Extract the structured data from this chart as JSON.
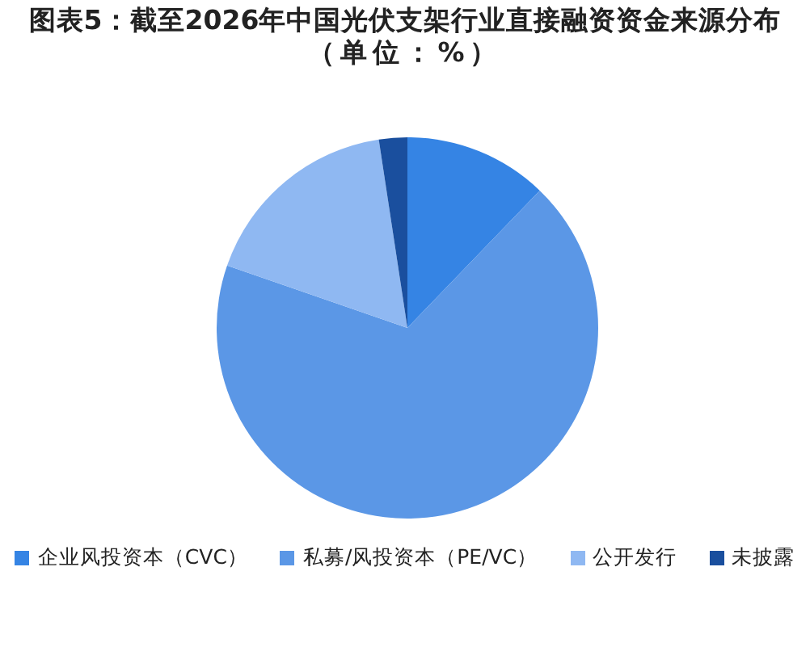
{
  "chart_data": {
    "type": "pie",
    "title": "图表5：截至2026年中国光伏支架行业直接融资资金来源分布",
    "subtitle": "（单位：%）",
    "categories": [
      "企业风投资本（CVC）",
      "私募/风投资本（PE/VC）",
      "公开发行",
      "未披露"
    ],
    "values": [
      12.2,
      68.1,
      17.3,
      2.4
    ],
    "colors": [
      "#3584e4",
      "#5b97e6",
      "#8fb8f2",
      "#1a4f9e"
    ],
    "legend": "bottom"
  }
}
